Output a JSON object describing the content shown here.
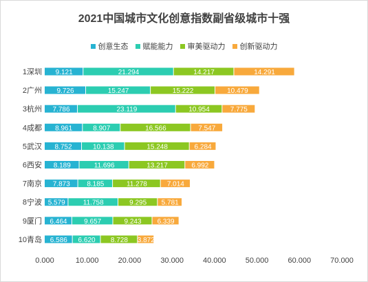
{
  "chart_data": {
    "type": "bar",
    "orientation": "horizontal",
    "stacked": true,
    "title": "2021中国城市文化创意指数副省级城市十强",
    "categories": [
      "1深圳",
      "2广州",
      "3杭州",
      "4成都",
      "5武汉",
      "6西安",
      "7南京",
      "8宁波",
      "9厦门",
      "10青岛"
    ],
    "series": [
      {
        "name": "创意生态",
        "color": "#27b3d2",
        "values": [
          9.121,
          9.726,
          7.786,
          8.961,
          8.752,
          8.189,
          7.873,
          5.579,
          6.464,
          6.586
        ],
        "labels": [
          "9.121",
          "9.726",
          "7.786",
          "8.961",
          "8.752",
          "8.189",
          "7.873",
          "5.579",
          "6.464",
          "6.586"
        ]
      },
      {
        "name": "赋能能力",
        "color": "#2ccdb1",
        "values": [
          21.294,
          15.247,
          23.119,
          8.907,
          10.138,
          11.696,
          8.185,
          11.758,
          9.657,
          6.62
        ],
        "labels": [
          "21.294",
          "15.247",
          "23.119",
          "8.907",
          "10.138",
          "11.696",
          "8.185",
          "11.758",
          "9.657",
          "6.620"
        ]
      },
      {
        "name": "审美驱动力",
        "color": "#8cc722",
        "values": [
          14.217,
          15.222,
          10.954,
          16.566,
          15.248,
          13.217,
          11.278,
          9.295,
          9.243,
          8.728
        ],
        "labels": [
          "14.217",
          "15.222",
          "10.954",
          "16.566",
          "15.248",
          "13.217",
          "11.278",
          "9.295",
          "9.243",
          "8.728"
        ]
      },
      {
        "name": "创新驱动力",
        "color": "#f8a93c",
        "values": [
          14.291,
          10.479,
          7.775,
          7.547,
          6.284,
          6.992,
          7.014,
          5.781,
          6.339,
          3.872
        ],
        "labels": [
          "14.291",
          "10.479",
          "7.775",
          "7.547",
          "6.284",
          "6.992",
          "7.014",
          "5.781",
          "6.339",
          "3.872"
        ]
      }
    ],
    "xlim": [
      0,
      70
    ],
    "xticks": [
      0,
      10,
      20,
      30,
      40,
      50,
      60,
      70
    ],
    "xtick_labels": [
      "0.000",
      "10.000",
      "20.000",
      "30.000",
      "40.000",
      "50.000",
      "60.000",
      "70.000"
    ],
    "legend_position": "top",
    "grid": false
  }
}
